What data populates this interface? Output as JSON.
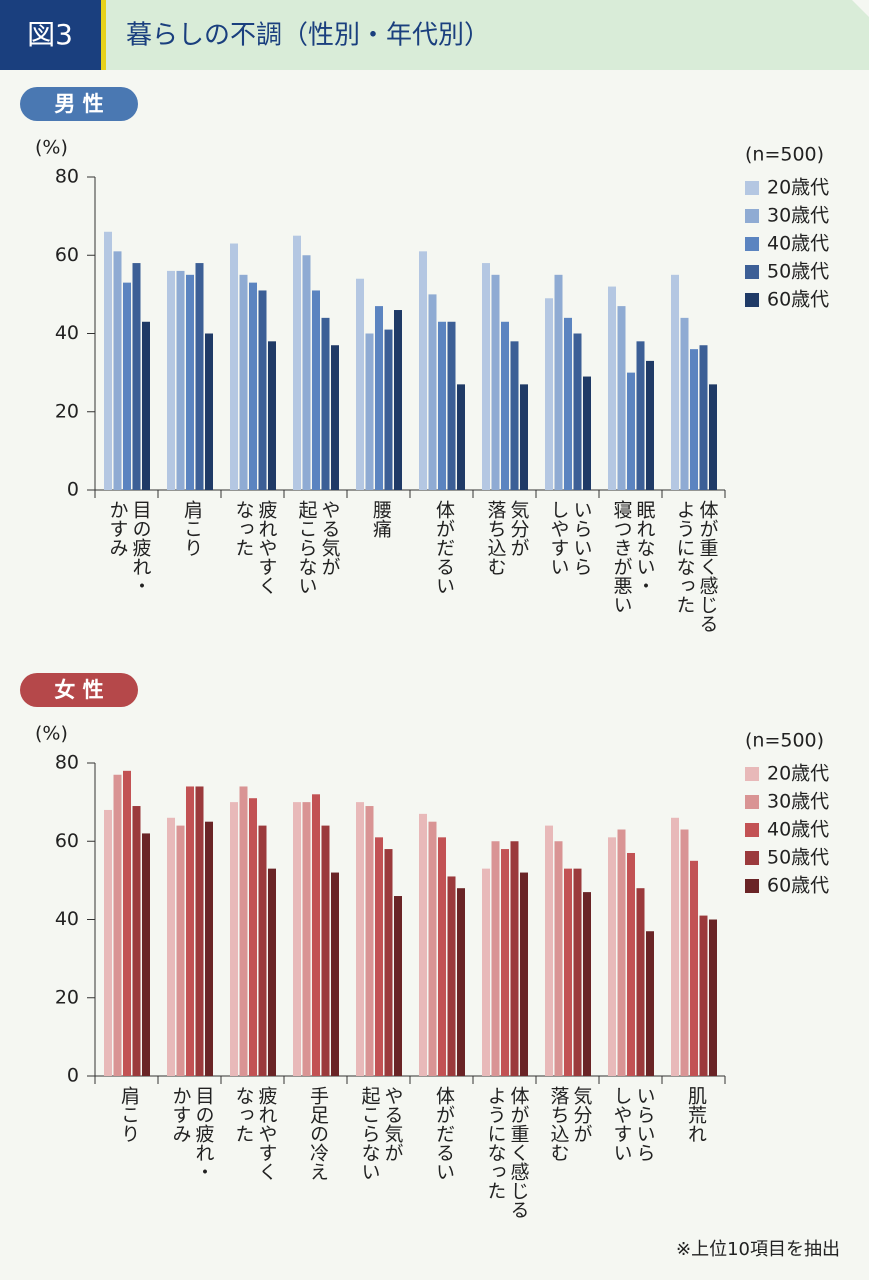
{
  "header": {
    "figure": "図3",
    "title": "暮らしの不調（性別・年代別）"
  },
  "chart_data": [
    {
      "type": "bar",
      "title": "男 性",
      "accent": "#4a78b2",
      "y_label": "(%)",
      "legend_title": "(n=500)",
      "legend": "upper right",
      "categories": [
        "目の疲れ・\nかすみ",
        "肩こり",
        "疲れやすく\nなった",
        "やる気が\n起こらない",
        "腰痛",
        "体がだるい",
        "気分が\n落ち込む",
        "いらいら\nしやすい",
        "眠れない・\n寝つきが悪い",
        "体が重く感じる\nようになった"
      ],
      "series": [
        {
          "name": "20歳代",
          "color": "#b4c7e2",
          "values": [
            66,
            56,
            63,
            65,
            54,
            61,
            58,
            49,
            52,
            55
          ]
        },
        {
          "name": "30歳代",
          "color": "#8fabd3",
          "values": [
            61,
            56,
            55,
            60,
            40,
            50,
            55,
            55,
            47,
            44
          ]
        },
        {
          "name": "40歳代",
          "color": "#5b84c0",
          "values": [
            53,
            55,
            53,
            51,
            47,
            43,
            43,
            44,
            30,
            36
          ]
        },
        {
          "name": "50歳代",
          "color": "#3c5f96",
          "values": [
            58,
            58,
            51,
            44,
            41,
            43,
            38,
            40,
            38,
            37
          ]
        },
        {
          "name": "60歳代",
          "color": "#1f3a66",
          "values": [
            43,
            40,
            38,
            37,
            46,
            27,
            27,
            29,
            33,
            27
          ]
        }
      ],
      "ylim": [
        0,
        80
      ],
      "yticks": [
        0,
        20,
        40,
        60,
        80
      ]
    },
    {
      "type": "bar",
      "title": "女 性",
      "accent": "#b5484a",
      "y_label": "(%)",
      "legend_title": "(n=500)",
      "legend": "upper right",
      "categories": [
        "肩こり",
        "目の疲れ・\nかすみ",
        "疲れやすく\nなった",
        "手足の冷え",
        "やる気が\n起こらない",
        "体がだるい",
        "体が重く感じる\nようになった",
        "気分が\n落ち込む",
        "いらいら\nしやすい",
        "肌荒れ"
      ],
      "series": [
        {
          "name": "20歳代",
          "color": "#e8b9b9",
          "values": [
            68,
            66,
            70,
            70,
            70,
            67,
            53,
            64,
            61,
            66
          ]
        },
        {
          "name": "30歳代",
          "color": "#d99494",
          "values": [
            77,
            64,
            74,
            70,
            69,
            65,
            60,
            60,
            63,
            63
          ]
        },
        {
          "name": "40歳代",
          "color": "#c25254",
          "values": [
            78,
            74,
            71,
            72,
            61,
            61,
            58,
            53,
            57,
            55
          ]
        },
        {
          "name": "50歳代",
          "color": "#9b3a3c",
          "values": [
            69,
            74,
            64,
            64,
            58,
            51,
            60,
            53,
            48,
            41
          ]
        },
        {
          "name": "60歳代",
          "color": "#6a2426",
          "values": [
            62,
            65,
            53,
            52,
            46,
            48,
            52,
            47,
            37,
            40
          ]
        }
      ],
      "ylim": [
        0,
        80
      ],
      "yticks": [
        0,
        20,
        40,
        60,
        80
      ]
    }
  ],
  "footnote": "※上位10項目を抽出"
}
